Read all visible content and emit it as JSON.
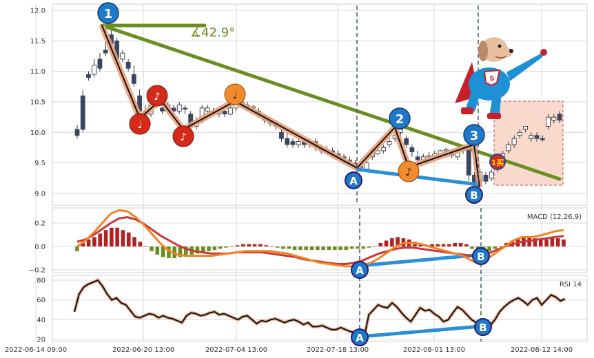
{
  "chart_data": [
    {
      "type": "candlestick",
      "panel": "price",
      "ylim": [
        8.85,
        12.05
      ],
      "yticks": [
        "12.0",
        "11.5",
        "11.0",
        "10.5",
        "10.0",
        "9.5",
        "9.0"
      ],
      "candles": [
        [
          10.05,
          9.95,
          10.12,
          9.9
        ],
        [
          10.6,
          10.05,
          10.7,
          10.0
        ],
        [
          10.95,
          10.9,
          11.0,
          10.85
        ],
        [
          10.95,
          11.1,
          11.2,
          10.9
        ],
        [
          11.2,
          11.05,
          11.3,
          11.0
        ],
        [
          11.35,
          11.3,
          11.8,
          11.25
        ],
        [
          11.6,
          11.45,
          11.75,
          11.4
        ],
        [
          11.5,
          11.2,
          11.55,
          11.1
        ],
        [
          11.2,
          11.3,
          11.35,
          11.15
        ],
        [
          11.15,
          11.05,
          11.2,
          11.0
        ],
        [
          10.95,
          10.8,
          11.1,
          10.75
        ],
        [
          10.6,
          10.35,
          10.7,
          10.3
        ],
        [
          10.35,
          10.3,
          10.45,
          10.25
        ],
        [
          10.3,
          10.45,
          10.5,
          10.25
        ],
        [
          10.45,
          10.5,
          10.55,
          10.4
        ],
        [
          10.4,
          10.35,
          10.45,
          10.3
        ],
        [
          10.35,
          10.45,
          10.5,
          10.3
        ],
        [
          10.4,
          10.35,
          10.45,
          10.3
        ],
        [
          10.35,
          10.45,
          10.5,
          10.3
        ],
        [
          10.4,
          10.38,
          10.45,
          10.3
        ],
        [
          10.3,
          10.1,
          10.35,
          10.05
        ],
        [
          10.1,
          10.2,
          10.25,
          10.05
        ],
        [
          10.2,
          10.4,
          10.45,
          10.15
        ],
        [
          10.35,
          10.4,
          10.45,
          10.3
        ],
        [
          10.35,
          10.32,
          10.4,
          10.28
        ],
        [
          10.3,
          10.35,
          10.4,
          10.25
        ],
        [
          10.35,
          10.3,
          10.4,
          10.25
        ],
        [
          10.3,
          10.4,
          10.45,
          10.28
        ],
        [
          10.4,
          10.55,
          10.6,
          10.35
        ],
        [
          10.5,
          10.45,
          10.55,
          10.4
        ],
        [
          10.45,
          10.4,
          10.5,
          10.35
        ],
        [
          10.4,
          10.42,
          10.45,
          10.35
        ],
        [
          10.35,
          10.3,
          10.4,
          10.25
        ],
        [
          10.25,
          10.2,
          10.3,
          10.15
        ],
        [
          10.2,
          10.15,
          10.25,
          10.1
        ],
        [
          10.15,
          10.1,
          10.2,
          10.05
        ],
        [
          10.0,
          9.9,
          10.05,
          9.85
        ],
        [
          9.9,
          9.8,
          10.0,
          9.75
        ],
        [
          9.85,
          9.8,
          9.9,
          9.75
        ],
        [
          9.8,
          9.85,
          9.9,
          9.75
        ],
        [
          9.85,
          9.8,
          9.9,
          9.75
        ],
        [
          9.8,
          9.85,
          9.9,
          9.75
        ],
        [
          9.85,
          9.78,
          9.9,
          9.7
        ],
        [
          9.75,
          9.7,
          9.8,
          9.65
        ],
        [
          9.7,
          9.72,
          9.78,
          9.65
        ],
        [
          9.7,
          9.65,
          9.75,
          9.6
        ],
        [
          9.65,
          9.6,
          9.7,
          9.55
        ],
        [
          9.6,
          9.58,
          9.65,
          9.55
        ],
        [
          9.55,
          9.5,
          9.6,
          9.45
        ],
        [
          9.5,
          9.45,
          9.55,
          9.4
        ],
        [
          9.45,
          9.42,
          9.5,
          9.38
        ],
        [
          9.4,
          9.5,
          9.55,
          9.38
        ],
        [
          9.6,
          9.7,
          9.75,
          9.55
        ],
        [
          9.65,
          9.7,
          9.75,
          9.62
        ],
        [
          9.7,
          9.75,
          9.8,
          9.65
        ],
        [
          9.8,
          9.85,
          9.9,
          9.75
        ],
        [
          9.9,
          9.95,
          10.0,
          9.85
        ],
        [
          10.0,
          10.05,
          10.1,
          9.95
        ],
        [
          9.9,
          9.8,
          9.95,
          9.75
        ],
        [
          9.75,
          9.68,
          9.8,
          9.6
        ],
        [
          9.6,
          9.55,
          9.7,
          9.5
        ],
        [
          9.55,
          9.6,
          9.65,
          9.5
        ],
        [
          9.6,
          9.62,
          9.68,
          9.55
        ],
        [
          9.62,
          9.65,
          9.7,
          9.58
        ],
        [
          9.65,
          9.7,
          9.72,
          9.6
        ],
        [
          9.7,
          9.72,
          9.75,
          9.65
        ],
        [
          9.68,
          9.62,
          9.72,
          9.58
        ],
        [
          9.6,
          9.7,
          9.75,
          9.55
        ],
        [
          9.7,
          9.75,
          9.8,
          9.65
        ],
        [
          9.75,
          9.3,
          9.78,
          9.2
        ],
        [
          9.3,
          9.15,
          9.35,
          9.1
        ],
        [
          9.2,
          9.35,
          9.4,
          9.15
        ],
        [
          9.3,
          9.2,
          9.35,
          9.15
        ],
        [
          9.25,
          9.35,
          9.4,
          9.2
        ],
        [
          9.4,
          9.5,
          9.55,
          9.35
        ],
        [
          9.5,
          9.65,
          9.7,
          9.45
        ],
        [
          9.7,
          9.8,
          9.85,
          9.65
        ],
        [
          9.8,
          9.9,
          9.95,
          9.75
        ],
        [
          9.95,
          10.0,
          10.05,
          9.9
        ],
        [
          10.05,
          10.1,
          10.1,
          10.0
        ],
        [
          9.9,
          9.95,
          10.0,
          9.85
        ],
        [
          9.95,
          9.9,
          10.0,
          9.85
        ],
        [
          9.9,
          9.88,
          9.95,
          9.85
        ],
        [
          10.1,
          10.25,
          10.3,
          10.05
        ],
        [
          10.2,
          10.25,
          10.3,
          10.15
        ],
        [
          10.3,
          10.2,
          10.35,
          10.15
        ]
      ]
    },
    {
      "type": "bar+line",
      "panel": "macd",
      "label": "MACD (12,26,9)",
      "ylim": [
        -0.22,
        0.35
      ],
      "yticks": [
        "0.2",
        "0.0",
        "−0.2"
      ],
      "histogram": [
        -0.04,
        0.03,
        0.06,
        0.08,
        0.11,
        0.14,
        0.16,
        0.16,
        0.14,
        0.12,
        0.08,
        0.04,
        0.0,
        -0.04,
        -0.07,
        -0.09,
        -0.1,
        -0.1,
        -0.09,
        -0.08,
        -0.07,
        -0.06,
        -0.05,
        -0.04,
        -0.03,
        -0.02,
        -0.01,
        0.0,
        0.01,
        0.02,
        0.02,
        0.02,
        0.02,
        0.01,
        0.0,
        -0.01,
        -0.02,
        -0.02,
        -0.03,
        -0.03,
        -0.03,
        -0.03,
        -0.03,
        -0.03,
        -0.03,
        -0.03,
        -0.03,
        -0.03,
        -0.02,
        -0.02,
        -0.02,
        -0.01,
        0.0,
        0.03,
        0.05,
        0.07,
        0.08,
        0.07,
        0.06,
        0.04,
        0.02,
        0.01,
        0.02,
        0.02,
        0.02,
        0.02,
        0.03,
        0.03,
        0.02,
        -0.02,
        -0.04,
        -0.05,
        -0.04,
        -0.02,
        0.0,
        0.03,
        0.05,
        0.07,
        0.08,
        0.08,
        0.07,
        0.06,
        0.06,
        0.07,
        0.07,
        0.06
      ],
      "macd_line": [
        0.0,
        0.05,
        0.12,
        0.2,
        0.28,
        0.31,
        0.3,
        0.25,
        0.18,
        0.1,
        0.02,
        -0.04,
        -0.07,
        -0.08,
        -0.08,
        -0.08,
        -0.08,
        -0.07,
        -0.06,
        -0.05,
        -0.04,
        -0.04,
        -0.04,
        -0.04,
        -0.05,
        -0.06,
        -0.08,
        -0.1,
        -0.12,
        -0.14,
        -0.15,
        -0.16,
        -0.17,
        -0.17,
        -0.16,
        -0.14,
        -0.1,
        -0.05,
        0.0,
        0.03,
        0.03,
        0.02,
        0.0,
        -0.02,
        -0.04,
        -0.06,
        -0.08,
        -0.12,
        -0.15,
        -0.1,
        -0.05,
        0.0,
        0.05,
        0.08,
        0.08,
        0.09,
        0.11,
        0.13,
        0.14
      ],
      "signal_line": [
        0.04,
        0.06,
        0.1,
        0.15,
        0.2,
        0.24,
        0.25,
        0.23,
        0.19,
        0.14,
        0.09,
        0.05,
        0.01,
        -0.02,
        -0.04,
        -0.05,
        -0.06,
        -0.06,
        -0.06,
        -0.05,
        -0.05,
        -0.05,
        -0.05,
        -0.06,
        -0.07,
        -0.08,
        -0.09,
        -0.11,
        -0.12,
        -0.13,
        -0.14,
        -0.15,
        -0.15,
        -0.14,
        -0.12,
        -0.09,
        -0.06,
        -0.04,
        -0.02,
        -0.01,
        -0.01,
        -0.02,
        -0.03,
        -0.04,
        -0.05,
        -0.06,
        -0.07,
        -0.08,
        -0.08,
        -0.06,
        -0.03,
        0.0,
        0.02,
        0.04,
        0.05,
        0.06,
        0.07,
        0.08,
        0.09
      ]
    },
    {
      "type": "line",
      "panel": "rsi",
      "label": "RSI 14",
      "ylim": [
        18,
        82
      ],
      "yticks": [
        "80",
        "60",
        "40",
        "20"
      ],
      "values": [
        48,
        66,
        73,
        76,
        78,
        80,
        74,
        66,
        60,
        62,
        57,
        55,
        49,
        43,
        42,
        44,
        46,
        45,
        42,
        44,
        42,
        41,
        39,
        37,
        44,
        47,
        46,
        44,
        45,
        47,
        48,
        45,
        46,
        44,
        42,
        40,
        43,
        44,
        40,
        36,
        39,
        38,
        40,
        41,
        39,
        37,
        39,
        40,
        38,
        35,
        37,
        33,
        33,
        34,
        32,
        30,
        30,
        32,
        30,
        28,
        27,
        25,
        22,
        45,
        50,
        55,
        53,
        52,
        57,
        53,
        47,
        42,
        38,
        45,
        52,
        49,
        50,
        46,
        43,
        38,
        40,
        47,
        53,
        50,
        45,
        40,
        37,
        33,
        31,
        34,
        40,
        48,
        53,
        57,
        60,
        62,
        59,
        55,
        60,
        62,
        55,
        60,
        65,
        63,
        59,
        61
      ]
    }
  ],
  "xticks": [
    "2022-06-14 09:00",
    "2022-06-20 13:00",
    "2022-07-04 13:00",
    "2022-07-18 13:00",
    "2022-08-01 13:00",
    "2022-08-12 14:00"
  ],
  "annotations": {
    "angle_text": "∡42.9°",
    "wave_labels": [
      "1",
      "2",
      "3"
    ],
    "div_labels": [
      "A",
      "B"
    ],
    "buy_label": "1买"
  },
  "colors": {
    "up_fill": "#ffffff",
    "up_edge": "#222222",
    "down_fill": "#3a4560",
    "trend_line": "#6b8e23",
    "wave_line": "#111111",
    "wave_glow": "#e8a07a",
    "badge_blue": "#1f78c8",
    "badge_red": "#d42a1a",
    "badge_orange": "#f28a2e",
    "div_line": "#2b8fd6",
    "macd_orange": "#f5821f",
    "macd_red": "#c8373a",
    "hist_pos": "#b22222",
    "hist_neg": "#6b8e23",
    "rsi": "#111111",
    "buy_box": "#f9d9cc",
    "grid": "#d9d9d9"
  }
}
